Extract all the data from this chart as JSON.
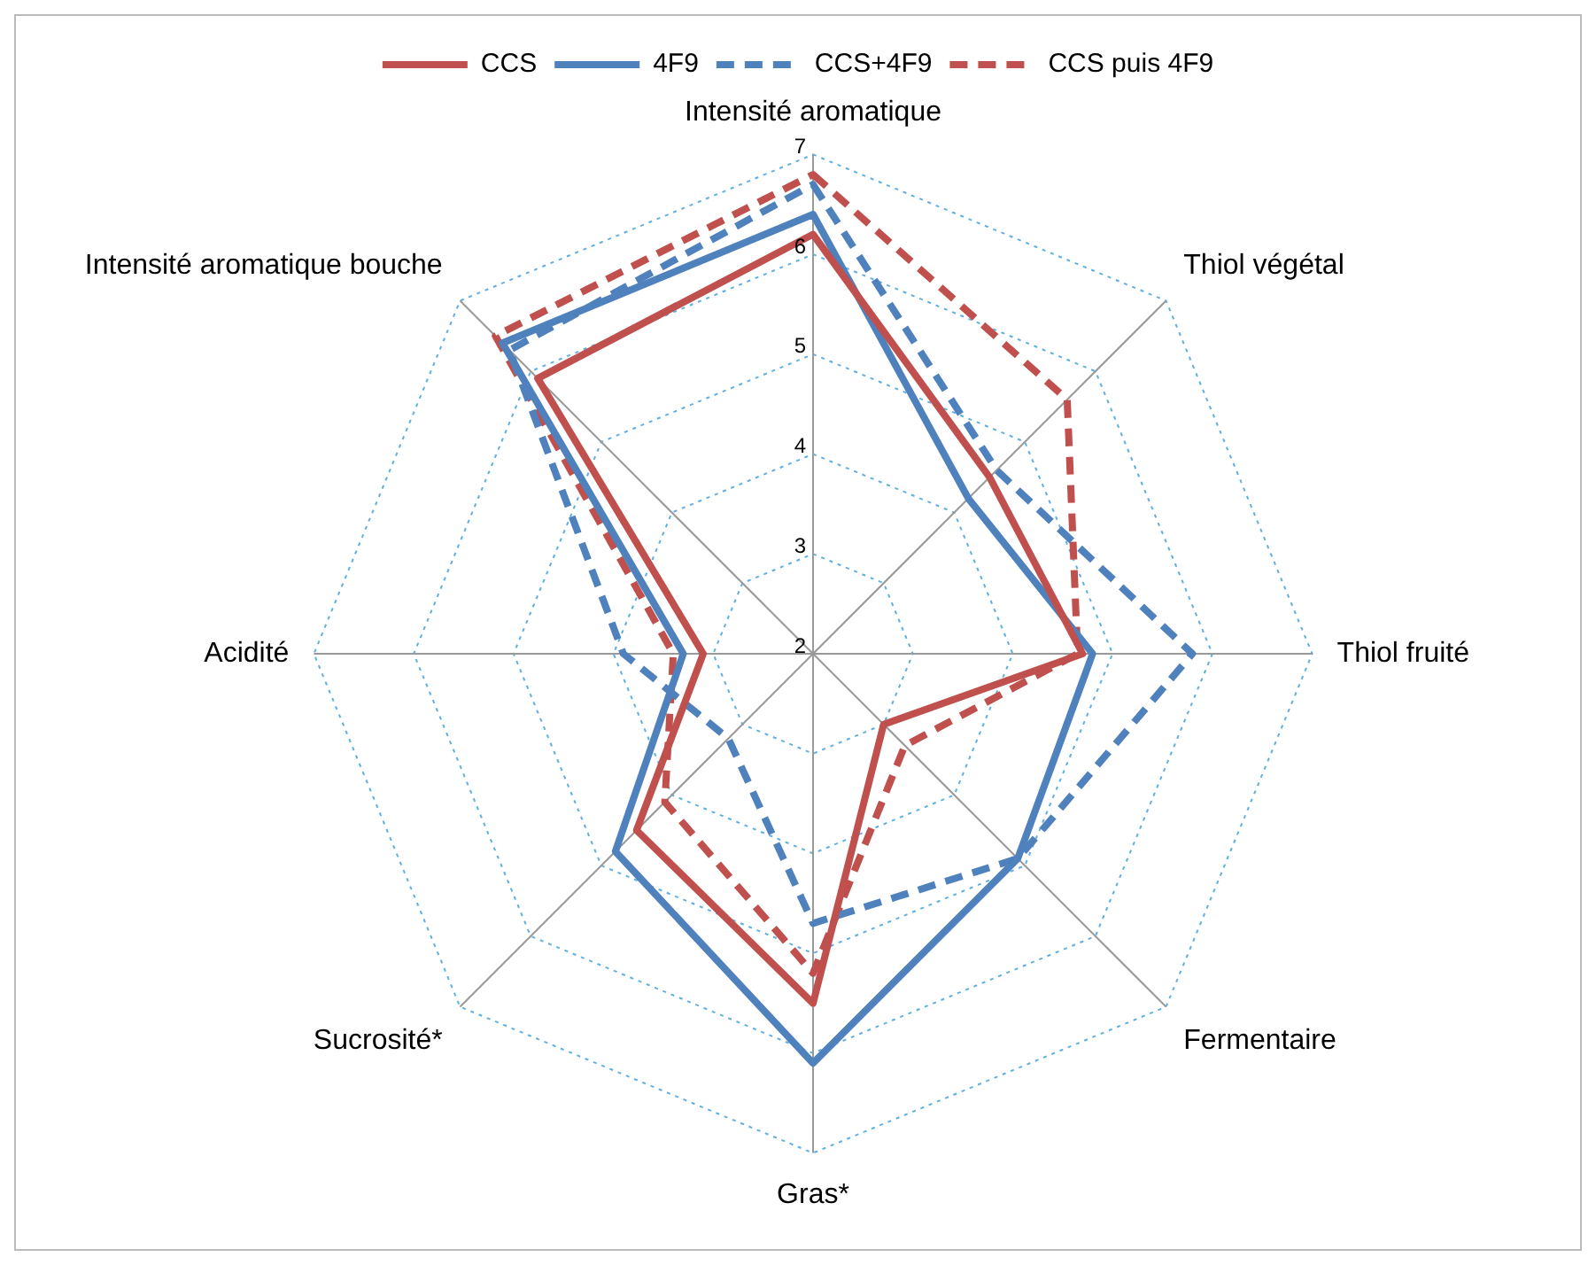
{
  "chart_data": {
    "type": "radar",
    "categories": [
      "Intensité aromatique",
      "Thiol végétal",
      "Thiol fruité",
      "Fermentaire",
      "Gras*",
      "Sucrosité*",
      "Acidité",
      "Intensité aromatique bouche"
    ],
    "series": [
      {
        "name": "CCS",
        "color": "#c0504d",
        "line_style": "solid",
        "values": [
          6.2,
          4.5,
          4.7,
          3.0,
          5.5,
          4.5,
          3.1,
          5.9
        ]
      },
      {
        "name": "4F9",
        "color": "#4f81bd",
        "line_style": "solid",
        "values": [
          6.4,
          4.2,
          4.8,
          4.9,
          6.1,
          4.8,
          3.3,
          6.4
        ]
      },
      {
        "name": "CCS+4F9",
        "color": "#4f81bd",
        "line_style": "dashed",
        "values": [
          6.7,
          4.6,
          5.8,
          4.9,
          4.7,
          3.2,
          3.9,
          6.3
        ]
      },
      {
        "name": "CCS puis 4F9",
        "color": "#c0504d",
        "line_style": "dashed",
        "values": [
          6.8,
          5.6,
          4.65,
          3.3,
          5.2,
          4.1,
          3.4,
          6.5
        ]
      }
    ],
    "ylim": [
      2,
      7
    ],
    "yticks": [
      2,
      3,
      4,
      5,
      6,
      7
    ],
    "grid": true,
    "legend": "top",
    "marker": "none"
  }
}
